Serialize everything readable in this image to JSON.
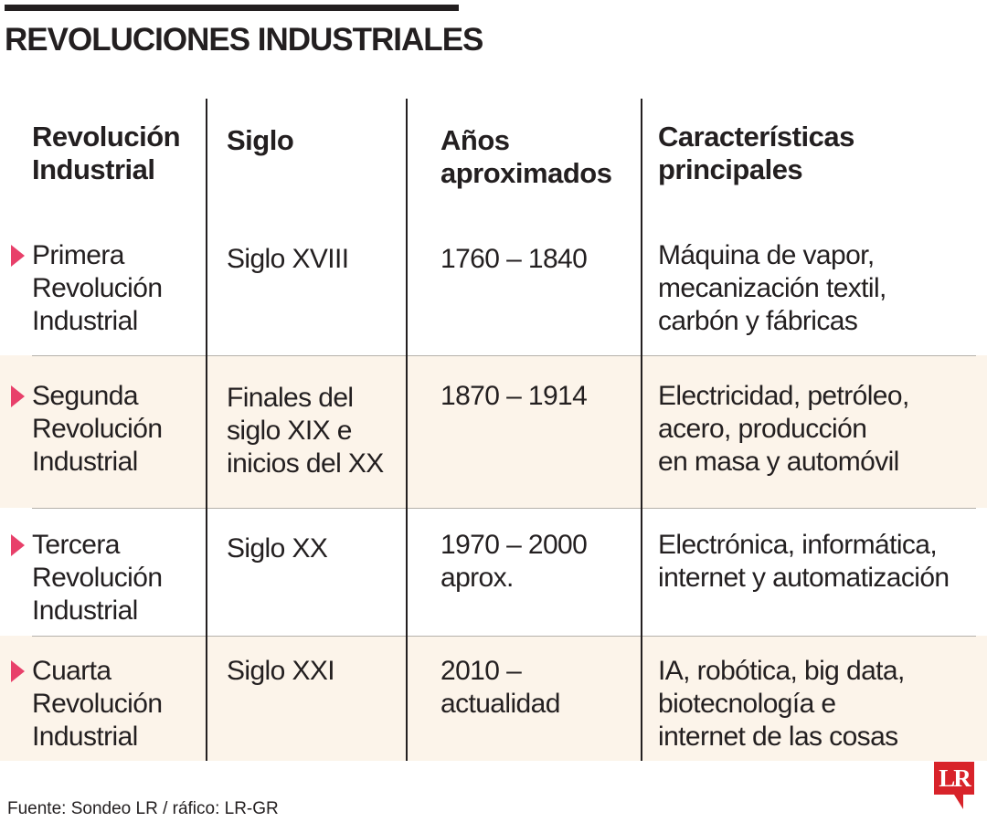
{
  "title": "REVOLUCIONES INDUSTRIALES",
  "headers": {
    "revolucion": [
      "Revolución",
      "Industrial"
    ],
    "siglo": [
      "Siglo"
    ],
    "anios": [
      "Años",
      "aproximados"
    ],
    "caracteristicas": [
      "Características",
      "principales"
    ]
  },
  "rows": [
    {
      "revolucion": [
        "Primera",
        "Revolución",
        "Industrial"
      ],
      "siglo": [
        "Siglo XVIII"
      ],
      "anios": [
        "1760 – 1840"
      ],
      "caracteristicas": [
        "Máquina de vapor,",
        "mecanización textil,",
        "carbón y fábricas"
      ]
    },
    {
      "revolucion": [
        "Segunda",
        "Revolución",
        "Industrial"
      ],
      "siglo": [
        "Finales del",
        "siglo XIX e",
        "inicios del XX"
      ],
      "anios": [
        "1870 – 1914"
      ],
      "caracteristicas": [
        "Electricidad, petróleo,",
        "acero, producción",
        "en masa y automóvil"
      ]
    },
    {
      "revolucion": [
        "Tercera",
        "Revolución",
        "Industrial"
      ],
      "siglo": [
        "Siglo XX"
      ],
      "anios": [
        "1970 – 2000",
        "aprox."
      ],
      "caracteristicas": [
        "Electrónica, informática,",
        "internet y automatización"
      ]
    },
    {
      "revolucion": [
        "Cuarta",
        "Revolución",
        "Industrial"
      ],
      "siglo": [
        "Siglo XXI"
      ],
      "anios": [
        "2010 –",
        "actualidad"
      ],
      "caracteristicas": [
        "IA, robótica, big data,",
        "biotecnología e",
        "internet de las cosas"
      ]
    }
  ],
  "source": "Fuente: Sondeo LR / ráfico: LR-GR",
  "logo_text": "LR",
  "colors": {
    "accent_arrow": "#e8406a",
    "row_shade": "#fcf4ea",
    "logo_red": "#d8232a",
    "text": "#231f20"
  }
}
